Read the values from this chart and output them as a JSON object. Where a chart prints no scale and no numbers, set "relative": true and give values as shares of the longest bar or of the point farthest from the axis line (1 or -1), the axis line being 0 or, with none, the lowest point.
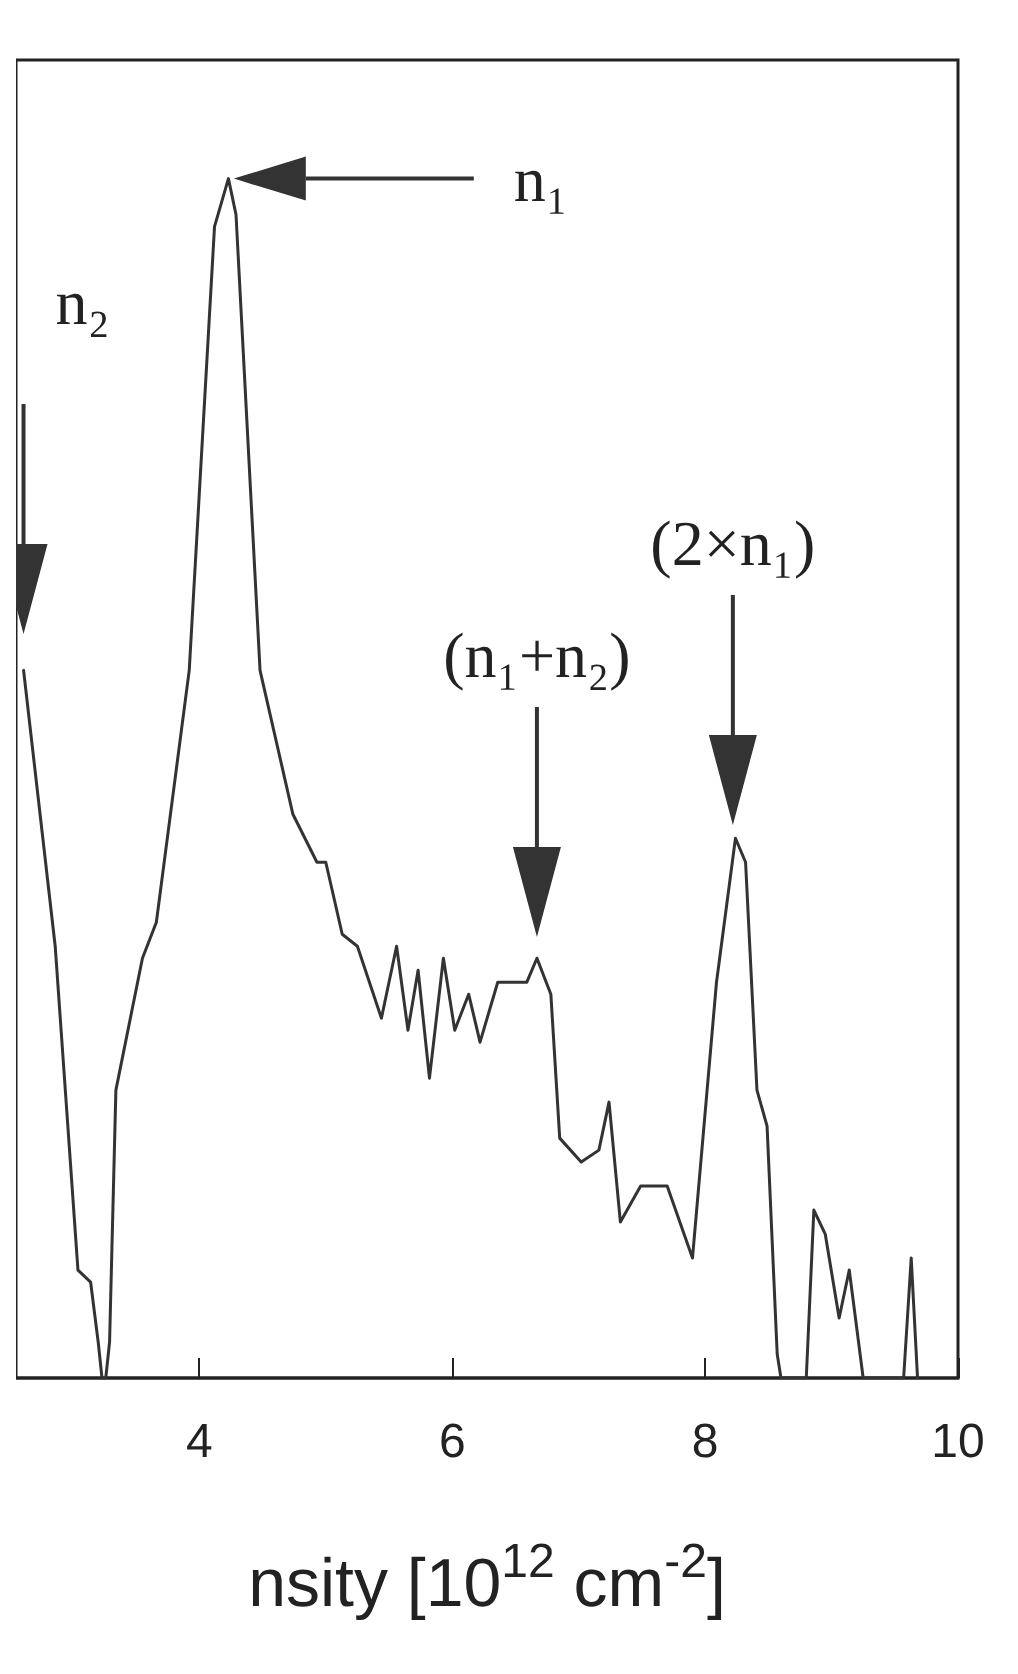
{
  "chart_data": {
    "type": "line",
    "relative": true,
    "color": "#333333",
    "xlabel": "nsity [10$^{12}$ cm$^{-2}$]",
    "xlim": [
      2.55,
      10
    ],
    "xticks": [
      4,
      6,
      8,
      10
    ],
    "tick_labels": "x",
    "grid": false,
    "marker": "none",
    "line_style": "solid",
    "x": [
      2.61,
      2.86,
      3.04,
      3.14,
      3.2,
      3.23,
      3.26,
      3.29,
      3.34,
      3.55,
      3.66,
      3.92,
      4.12,
      4.23,
      4.29,
      4.48,
      4.74,
      4.93,
      5.0,
      5.13,
      5.25,
      5.44,
      5.56,
      5.65,
      5.73,
      5.82,
      5.93,
      6.02,
      6.13,
      6.22,
      6.36,
      6.48,
      6.59,
      6.67,
      6.78,
      6.85,
      7.02,
      7.16,
      7.24,
      7.33,
      7.49,
      7.7,
      7.9,
      8.09,
      8.24,
      8.32,
      8.41,
      8.49,
      8.57,
      8.6,
      8.8,
      8.86,
      8.95,
      9.06,
      9.14,
      9.25,
      9.57,
      9.63,
      9.68
    ],
    "values": [
      0.59,
      0.36,
      0.09,
      0.08,
      0.03,
      0,
      0,
      0.03,
      0.24,
      0.35,
      0.38,
      0.59,
      0.96,
      1,
      0.97,
      0.59,
      0.47,
      0.43,
      0.43,
      0.37,
      0.36,
      0.3,
      0.36,
      0.29,
      0.34,
      0.25,
      0.35,
      0.29,
      0.32,
      0.28,
      0.33,
      0.33,
      0.33,
      0.35,
      0.32,
      0.2,
      0.18,
      0.19,
      0.23,
      0.13,
      0.16,
      0.16,
      0.1,
      0.33,
      0.45,
      0.43,
      0.24,
      0.21,
      0.02,
      0,
      0,
      0.14,
      0.12,
      0.05,
      0.09,
      0,
      0,
      0.1,
      0
    ],
    "annotations": [
      "n₁",
      "n₂",
      "(n₁+n₂)",
      "(2×n₁)"
    ]
  }
}
